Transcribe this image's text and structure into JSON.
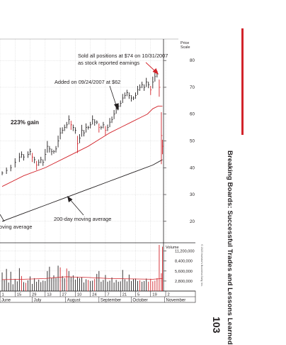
{
  "page": {
    "running_title": "Breaking Boards: Successful Trades and Lessons Learned",
    "page_number": "103",
    "copyright": "© 2023 Investor's Business Daily, Inc."
  },
  "colors": {
    "price_bar": "#231f20",
    "down_bar": "#d2232a",
    "ma50": "#d2232a",
    "ma200": "#231f20",
    "grid": "#b7b7b7",
    "accent": "#d2232a"
  },
  "chart_data": {
    "type": "line",
    "price_scale_label": "Price Scale",
    "volume_label": "Volume",
    "y_ticks": [
      20,
      30,
      40,
      50,
      60,
      70,
      80
    ],
    "ylim": [
      12,
      88
    ],
    "volume_ticks": [
      "11,200,000",
      "8,400,000",
      "5,600,000",
      "2,800,000"
    ],
    "volume_tick_values": [
      11200000,
      8400000,
      5600000,
      2800000
    ],
    "volume_max": 13500000,
    "date_ticks": [
      "1",
      "15",
      "29",
      "13",
      "27",
      "10",
      "24",
      "7",
      "21",
      "5",
      "19",
      "2"
    ],
    "date_tick_days": [
      -2,
      12,
      26,
      40,
      54,
      68,
      82,
      96,
      110,
      124,
      138,
      152
    ],
    "month_labels": [
      "June",
      "July",
      "August",
      "September",
      "October",
      "November"
    ],
    "month_start_days": [
      -2,
      28,
      59,
      90,
      120,
      151
    ],
    "series": [
      {
        "kind": "price_close",
        "points": [
          [
            0,
            38
          ],
          [
            4,
            39
          ],
          [
            8,
            40
          ],
          [
            12,
            42
          ],
          [
            16,
            44
          ],
          [
            18,
            45
          ],
          [
            20,
            44
          ],
          [
            24,
            45
          ],
          [
            26,
            46
          ],
          [
            28,
            44
          ],
          [
            30,
            43
          ],
          [
            32,
            41
          ],
          [
            34,
            42
          ],
          [
            36,
            43
          ],
          [
            38,
            42
          ],
          [
            40,
            45
          ],
          [
            42,
            48
          ],
          [
            44,
            47
          ],
          [
            46,
            46
          ],
          [
            48,
            46
          ],
          [
            50,
            47
          ],
          [
            52,
            50
          ],
          [
            54,
            53
          ],
          [
            56,
            54
          ],
          [
            58,
            55
          ],
          [
            60,
            56
          ],
          [
            62,
            58
          ],
          [
            64,
            56
          ],
          [
            66,
            55
          ],
          [
            68,
            54
          ],
          [
            70,
            49
          ],
          [
            72,
            51
          ],
          [
            74,
            54
          ],
          [
            76,
            53
          ],
          [
            78,
            55
          ],
          [
            80,
            55
          ],
          [
            82,
            56
          ],
          [
            84,
            58
          ],
          [
            86,
            57
          ],
          [
            88,
            57
          ],
          [
            90,
            55
          ],
          [
            92,
            55
          ],
          [
            94,
            56
          ],
          [
            96,
            54
          ],
          [
            98,
            55
          ],
          [
            100,
            57
          ],
          [
            102,
            58
          ],
          [
            104,
            60
          ],
          [
            106,
            62
          ],
          [
            108,
            63
          ],
          [
            110,
            64
          ],
          [
            112,
            66
          ],
          [
            114,
            67
          ],
          [
            116,
            68
          ],
          [
            118,
            67
          ],
          [
            120,
            66
          ],
          [
            122,
            66
          ],
          [
            124,
            67
          ],
          [
            126,
            69
          ],
          [
            128,
            70
          ],
          [
            130,
            71
          ],
          [
            132,
            70
          ],
          [
            134,
            72
          ],
          [
            136,
            71
          ],
          [
            138,
            69
          ],
          [
            140,
            72
          ],
          [
            142,
            74
          ],
          [
            144,
            75
          ],
          [
            146,
            70
          ],
          [
            148,
            52
          ],
          [
            149,
            48
          ]
        ]
      },
      {
        "kind": "ma50",
        "points": [
          [
            0,
            33
          ],
          [
            20,
            37
          ],
          [
            40,
            40
          ],
          [
            60,
            44
          ],
          [
            80,
            48
          ],
          [
            100,
            53
          ],
          [
            110,
            55
          ],
          [
            120,
            57
          ],
          [
            130,
            59
          ],
          [
            135,
            60
          ],
          [
            140,
            62
          ],
          [
            145,
            63
          ],
          [
            149,
            63
          ]
        ]
      },
      {
        "name": "200-day moving average",
        "kind": "ma200",
        "points": [
          [
            0,
            20
          ],
          [
            20,
            23
          ],
          [
            40,
            26
          ],
          [
            60,
            29
          ],
          [
            80,
            32
          ],
          [
            100,
            35
          ],
          [
            120,
            38
          ],
          [
            140,
            41
          ],
          [
            149,
            43
          ]
        ]
      }
    ],
    "volume": [
      [
        0,
        5200000
      ],
      [
        2,
        3100000
      ],
      [
        4,
        6200000
      ],
      [
        6,
        2400000
      ],
      [
        8,
        5400000
      ],
      [
        10,
        1900000
      ],
      [
        12,
        3400000
      ],
      [
        14,
        2700000
      ],
      [
        16,
        6400000
      ],
      [
        18,
        4200000
      ],
      [
        20,
        2500000
      ],
      [
        22,
        2300000
      ],
      [
        24,
        3000000
      ],
      [
        26,
        4100000
      ],
      [
        28,
        2000000
      ],
      [
        30,
        3600000
      ],
      [
        32,
        2600000
      ],
      [
        34,
        3200000
      ],
      [
        36,
        2500000
      ],
      [
        38,
        2900000
      ],
      [
        40,
        2800000
      ],
      [
        42,
        5600000
      ],
      [
        44,
        6800000
      ],
      [
        46,
        3600000
      ],
      [
        48,
        4400000
      ],
      [
        50,
        3700000
      ],
      [
        52,
        7100000
      ],
      [
        54,
        6600000
      ],
      [
        56,
        4200000
      ],
      [
        58,
        3600000
      ],
      [
        60,
        6300000
      ],
      [
        62,
        5600000
      ],
      [
        64,
        3900000
      ],
      [
        66,
        4400000
      ],
      [
        68,
        3200000
      ],
      [
        70,
        4000000
      ],
      [
        72,
        3600000
      ],
      [
        74,
        3800000
      ],
      [
        76,
        2400000
      ],
      [
        78,
        3300000
      ],
      [
        80,
        3100000
      ],
      [
        82,
        2800000
      ],
      [
        84,
        2900000
      ],
      [
        86,
        3400000
      ],
      [
        88,
        4800000
      ],
      [
        90,
        5600000
      ],
      [
        92,
        2600000
      ],
      [
        94,
        3100000
      ],
      [
        96,
        4500000
      ],
      [
        98,
        2600000
      ],
      [
        100,
        2900000
      ],
      [
        102,
        3800000
      ],
      [
        104,
        2400000
      ],
      [
        106,
        3100000
      ],
      [
        108,
        2600000
      ],
      [
        110,
        2700000
      ],
      [
        112,
        5900000
      ],
      [
        114,
        3300000
      ],
      [
        116,
        2700000
      ],
      [
        118,
        4600000
      ],
      [
        120,
        2800000
      ],
      [
        122,
        3400000
      ],
      [
        124,
        3500000
      ],
      [
        126,
        2800000
      ],
      [
        128,
        3000000
      ],
      [
        130,
        2600000
      ],
      [
        132,
        2800000
      ],
      [
        134,
        3500000
      ],
      [
        136,
        2600000
      ],
      [
        138,
        3400000
      ],
      [
        140,
        2700000
      ],
      [
        142,
        2900000
      ],
      [
        144,
        3600000
      ],
      [
        146,
        12900000
      ],
      [
        148,
        5000000
      ],
      [
        149,
        12400000
      ]
    ],
    "volume_avg": [
      [
        0,
        3200000
      ],
      [
        20,
        3300000
      ],
      [
        40,
        3500000
      ],
      [
        50,
        3800000
      ],
      [
        60,
        4000000
      ],
      [
        80,
        3800000
      ],
      [
        100,
        3500000
      ],
      [
        120,
        3400000
      ],
      [
        140,
        3300000
      ],
      [
        149,
        3500000
      ]
    ],
    "annotations": {
      "gain": "223% gain",
      "added": "Added on 09/24/2007 at $62",
      "sold_line1": "Sold all positions at $74 on 10/31/2007",
      "sold_line2": "as stock reported earnings",
      "ma200_label": "200-day moving average",
      "ma50_label_fragment": "oving average"
    }
  }
}
